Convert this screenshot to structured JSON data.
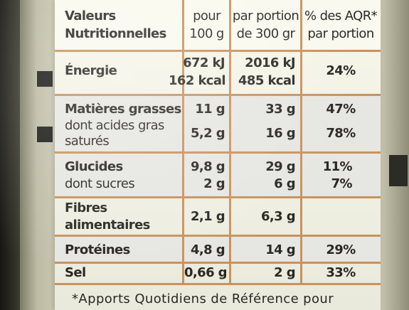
{
  "header": {
    "col1_line1": "Valeurs",
    "col1_line2": "Nutritionnelles",
    "col2_line1": "pour",
    "col2_line2": "100 g",
    "col3_line1": "par portion",
    "col3_line2": "de 300 gr",
    "col4_line1": "% des AQR*",
    "col4_line2": "par portion"
  },
  "rows": {
    "energie": {
      "label": "Énergie",
      "per100_kj": "672 kJ",
      "per100_kcal": "162 kcal",
      "portion_kj": "2016 kJ",
      "portion_kcal": "485 kcal",
      "aqr": "24%"
    },
    "graisses": {
      "label": "Matières grasses",
      "per100": "11 g",
      "portion": "33 g",
      "aqr": "47%"
    },
    "satures": {
      "label_line1": "dont acides gras",
      "label_line2": "saturés",
      "per100": "5,2 g",
      "portion": "16 g",
      "aqr": "78%"
    },
    "glucides": {
      "label": "Glucides",
      "per100": "9,8 g",
      "portion": "29 g",
      "aqr": "11%"
    },
    "sucres": {
      "label": "dont sucres",
      "per100": "2 g",
      "portion": "6 g",
      "aqr": "7%"
    },
    "fibres": {
      "label_line1": "Fibres",
      "label_line2": "alimentaires",
      "per100": "2,1 g",
      "portion": "6,3 g",
      "aqr": ""
    },
    "proteines": {
      "label": "Protéines",
      "per100": "4,8 g",
      "portion": "14 g",
      "aqr": "29%"
    },
    "sel": {
      "label": "Sel",
      "per100": "0,66 g",
      "portion": "2 g",
      "aqr": "33%"
    }
  },
  "footnote": "*Apports Quotidiens de Référence pour",
  "colors": {
    "rule": "#c9925c",
    "band": "#e6e6e2",
    "label_bg": "#f6f6ea",
    "text": "#2a2824"
  }
}
